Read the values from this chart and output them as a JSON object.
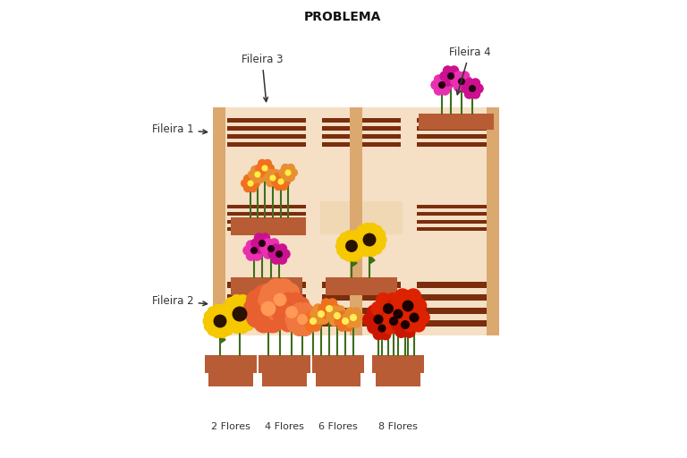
{
  "title": "PROBLEMA",
  "title_fontsize": 10,
  "title_fontweight": "bold",
  "bg_color": "#ffffff",
  "panel_bg_light": "#f5dfc5",
  "panel_bg_medium": "#eecfa8",
  "wood_color": "#edc48a",
  "slat_color": "#7a2e0e",
  "post_color": "#dba870",
  "pot_color": "#b85c35",
  "labels": {
    "fileira1": "Fileira 1",
    "fileira2": "Fileira 2",
    "fileira3": "Fileira 3",
    "fileira4": "Fileira 4"
  },
  "legend_labels": [
    "2 Flores",
    "4 Flores",
    "6 Flores",
    "8 Flores"
  ],
  "stem_color": "#3d6e1a",
  "sunflower_petal": "#f5c800",
  "sunflower_center": "#2a1200",
  "orange_flower": "#f07020",
  "orange_flower2": "#e89030",
  "pink_flower": "#e830b0",
  "magenta_flower": "#cc1090",
  "red_flower": "#cc1500",
  "red_flower2": "#dd2200"
}
